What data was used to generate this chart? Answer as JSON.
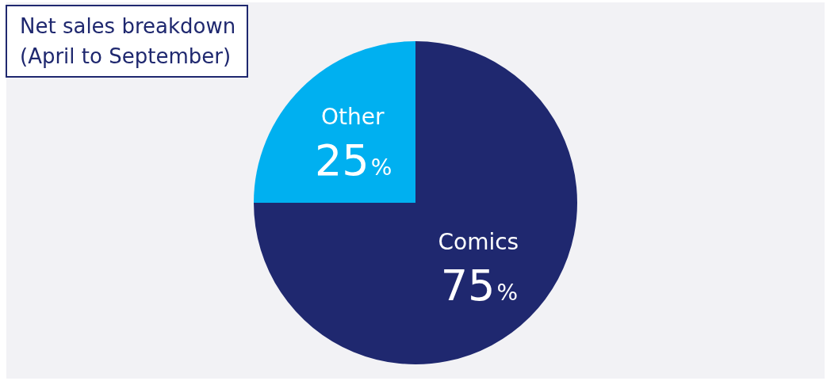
{
  "chart_data": {
    "type": "pie",
    "title": "Net sales breakdown",
    "subtitle": "(April to September)",
    "categories": [
      "Comics",
      "Other"
    ],
    "values": [
      75,
      25
    ],
    "colors": [
      "#1f286f",
      "#00b0f0"
    ],
    "value_labels": [
      "75%",
      "25%"
    ],
    "legend": false
  }
}
